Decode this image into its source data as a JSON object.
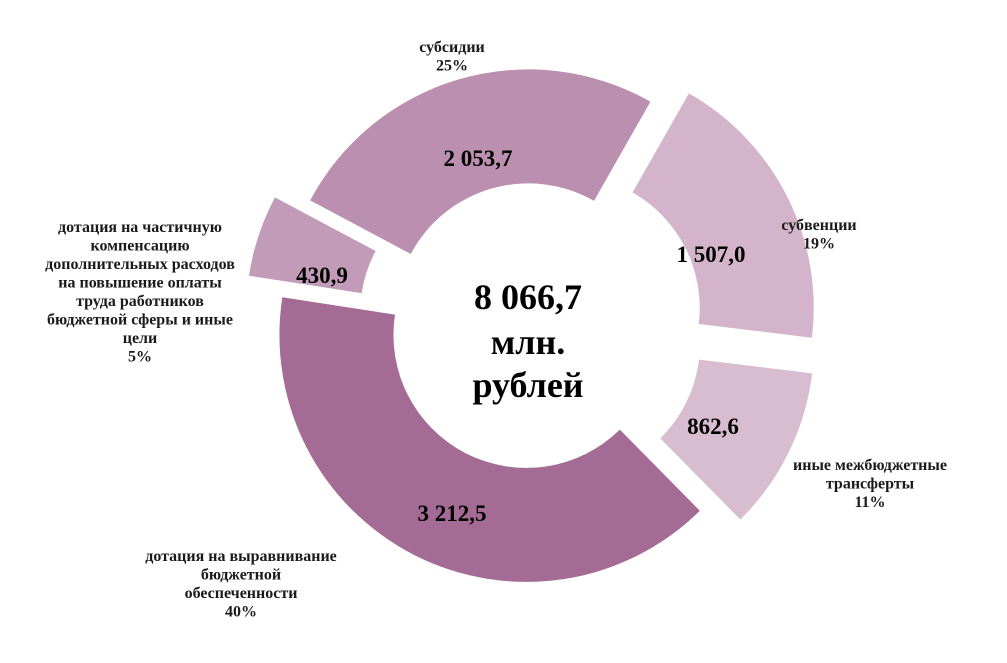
{
  "chart_data": {
    "type": "pie",
    "style": "donut",
    "center_label": [
      "8 066,7",
      "млн.",
      "рублей"
    ],
    "total": "8 066,7",
    "slices": [
      {
        "name": "субсидии",
        "value": 2053.7,
        "value_label": "2 053,7",
        "percent_label": "25%",
        "color": "#bb8faf"
      },
      {
        "name": "субвенции",
        "value": 1507.0,
        "value_label": "1 507,0",
        "percent_label": "19%",
        "color": "#d4b4ca"
      },
      {
        "name": "иные межбюджетные трансферты",
        "value": 862.6,
        "value_label": "862,6",
        "percent_label": "11%",
        "color": "#d8bcd0"
      },
      {
        "name": "дотация на выравнивание бюджетной обеспеченности",
        "value": 3212.5,
        "value_label": "3 212,5",
        "percent_label": "40%",
        "color": "#a46b95"
      },
      {
        "name": "дотация на частичную компенсацию дополнительных расходов на повышение оплаты труда работников бюджетной сферы и иные цели",
        "value": 430.9,
        "value_label": "430,9",
        "percent_label": "5%",
        "color": "#c29bb8"
      }
    ]
  }
}
